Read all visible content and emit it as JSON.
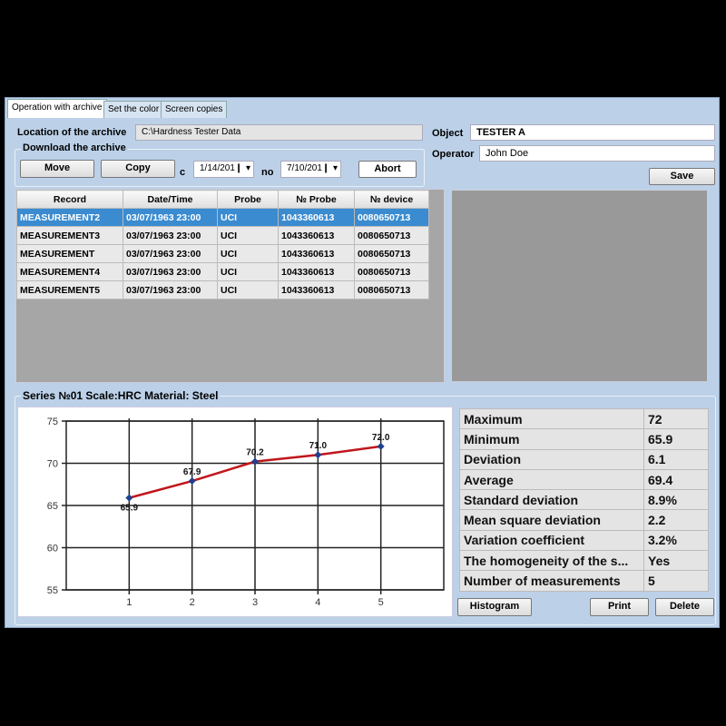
{
  "tabs": [
    "Operation with archive",
    "Set the color",
    "Screen copies"
  ],
  "archive": {
    "location_label": "Location of the archive",
    "location_value": "C:\\Hardness Tester Data"
  },
  "download": {
    "title": "Download the archive",
    "move": "Move",
    "copy": "Copy",
    "from_label": "c",
    "from_date": "1/14/201❙",
    "to_label": "no",
    "to_date": "7/10/201❙",
    "abort": "Abort"
  },
  "object": {
    "label": "Object",
    "value": "TESTER A"
  },
  "operator": {
    "label": "Operator",
    "value": "John Doe"
  },
  "save": "Save",
  "table": {
    "columns": [
      "Record",
      "Date/Time",
      "Probe",
      "№ Probe",
      "№ device"
    ],
    "rows": [
      [
        "MEASUREMENT2",
        "03/07/1963 23:00",
        "UCI",
        "1043360613",
        "0080650713"
      ],
      [
        "MEASUREMENT3",
        "03/07/1963 23:00",
        "UCI",
        "1043360613",
        "0080650713"
      ],
      [
        "MEASUREMENT",
        "03/07/1963 23:00",
        "UCI",
        "1043360613",
        "0080650713"
      ],
      [
        "MEASUREMENT4",
        "03/07/1963 23:00",
        "UCI",
        "1043360613",
        "0080650713"
      ],
      [
        "MEASUREMENT5",
        "03/07/1963 23:00",
        "UCI",
        "1043360613",
        "0080650713"
      ]
    ],
    "selected_row": 0
  },
  "series_title": "Series №01 Scale:HRC Material: Steel",
  "chart_data": {
    "type": "line",
    "x": [
      1,
      2,
      3,
      4,
      5
    ],
    "values": [
      65.9,
      67.9,
      70.2,
      71.0,
      72.0
    ],
    "data_labels": [
      "65.9",
      "67.9",
      "70.2",
      "71.0",
      "72.0"
    ],
    "xticks": [
      "1",
      "2",
      "3",
      "4",
      "5"
    ],
    "yticks": [
      "55",
      "60",
      "65",
      "70",
      "75"
    ],
    "ylim": [
      55,
      75
    ],
    "xlim": [
      0,
      6
    ],
    "line_color": "#c0161c",
    "marker_color": "#1f3f8f",
    "grid": "vertical"
  },
  "stats": [
    [
      "Maximum",
      "72"
    ],
    [
      "Minimum",
      "65.9"
    ],
    [
      "Deviation",
      "6.1"
    ],
    [
      "Average",
      "69.4"
    ],
    [
      "Standard deviation",
      "8.9%"
    ],
    [
      "Mean square deviation",
      "2.2"
    ],
    [
      "Variation coefficient",
      "3.2%"
    ],
    [
      "The homogeneity of the s...",
      "Yes"
    ],
    [
      "Number of measurements",
      "5"
    ]
  ],
  "buttons": {
    "histogram": "Histogram",
    "print": "Print",
    "delete": "Delete"
  }
}
